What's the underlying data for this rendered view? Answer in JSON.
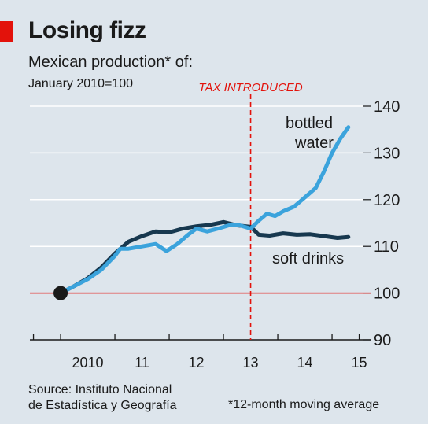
{
  "header": {
    "title": "Losing fizz",
    "subtitle": "Mexican production* of:",
    "index_note": "January 2010=100"
  },
  "footer": {
    "source_line1": "Source: Instituto Nacional",
    "source_line2": "de Estadística y Geografía",
    "footnote": "*12-month moving average"
  },
  "colors": {
    "accent": "#e3120b",
    "bottled_water": "#3ba3dc",
    "soft_drinks": "#17384f",
    "background": "#dde5ec",
    "grid": "#ffffff",
    "baseline": "#e3120b"
  },
  "chart_data": {
    "type": "line",
    "x_unit": "year",
    "xlim": [
      2009.55,
      2015.55
    ],
    "ylim": [
      90,
      140
    ],
    "yticks": [
      90,
      100,
      110,
      120,
      130,
      140
    ],
    "ytick_labels": [
      "90",
      "100",
      "110",
      "120",
      "130",
      "140"
    ],
    "xtick_positions": [
      2009.5,
      2010,
      2011,
      2012,
      2013,
      2014,
      2015,
      2015.5
    ],
    "xtick_labels": [
      {
        "label": "2010",
        "x": 2010.0
      },
      {
        "label": "11",
        "x": 2011.0
      },
      {
        "label": "12",
        "x": 2012.0
      },
      {
        "label": "13",
        "x": 2013.0
      },
      {
        "label": "14",
        "x": 2014.0
      },
      {
        "label": "15",
        "x": 2015.0
      }
    ],
    "baseline": 100,
    "grid": true,
    "start_point": {
      "x": 2010.0,
      "y": 100
    },
    "event": {
      "x": 2013.5,
      "label": "TAX INTRODUCED"
    },
    "series": [
      {
        "name": "bottled water",
        "color": "#3ba3dc",
        "points": [
          [
            2010.0,
            100
          ],
          [
            2010.25,
            101.5
          ],
          [
            2010.5,
            103
          ],
          [
            2010.75,
            105
          ],
          [
            2011.0,
            108
          ],
          [
            2011.1,
            109.5
          ],
          [
            2011.25,
            109.5
          ],
          [
            2011.5,
            110
          ],
          [
            2011.75,
            110.5
          ],
          [
            2011.95,
            109
          ],
          [
            2012.15,
            110.5
          ],
          [
            2012.35,
            112.5
          ],
          [
            2012.5,
            113.8
          ],
          [
            2012.7,
            113.2
          ],
          [
            2012.9,
            113.8
          ],
          [
            2013.1,
            114.5
          ],
          [
            2013.3,
            114.5
          ],
          [
            2013.5,
            113.8
          ],
          [
            2013.65,
            115.5
          ],
          [
            2013.8,
            117
          ],
          [
            2013.95,
            116.5
          ],
          [
            2014.1,
            117.5
          ],
          [
            2014.3,
            118.5
          ],
          [
            2014.5,
            120.5
          ],
          [
            2014.7,
            122.5
          ],
          [
            2014.85,
            126
          ],
          [
            2015.0,
            130
          ],
          [
            2015.15,
            133
          ],
          [
            2015.3,
            135.5
          ]
        ]
      },
      {
        "name": "soft drinks",
        "color": "#17384f",
        "points": [
          [
            2010.0,
            100
          ],
          [
            2010.25,
            101.5
          ],
          [
            2010.5,
            103.2
          ],
          [
            2010.75,
            105.5
          ],
          [
            2011.0,
            108.5
          ],
          [
            2011.25,
            111
          ],
          [
            2011.5,
            112.2
          ],
          [
            2011.75,
            113.2
          ],
          [
            2012.0,
            113
          ],
          [
            2012.25,
            113.8
          ],
          [
            2012.5,
            114.3
          ],
          [
            2012.75,
            114.6
          ],
          [
            2013.0,
            115.2
          ],
          [
            2013.25,
            114.5
          ],
          [
            2013.5,
            114.2
          ],
          [
            2013.65,
            112.5
          ],
          [
            2013.85,
            112.3
          ],
          [
            2014.1,
            112.8
          ],
          [
            2014.35,
            112.5
          ],
          [
            2014.6,
            112.6
          ],
          [
            2014.85,
            112.2
          ],
          [
            2015.1,
            111.8
          ],
          [
            2015.3,
            112
          ]
        ]
      }
    ],
    "annotations": [
      {
        "text": "bottled",
        "series": "bottled water"
      },
      {
        "text": "water",
        "series": "bottled water"
      },
      {
        "text": "soft drinks",
        "series": "soft drinks"
      }
    ]
  }
}
